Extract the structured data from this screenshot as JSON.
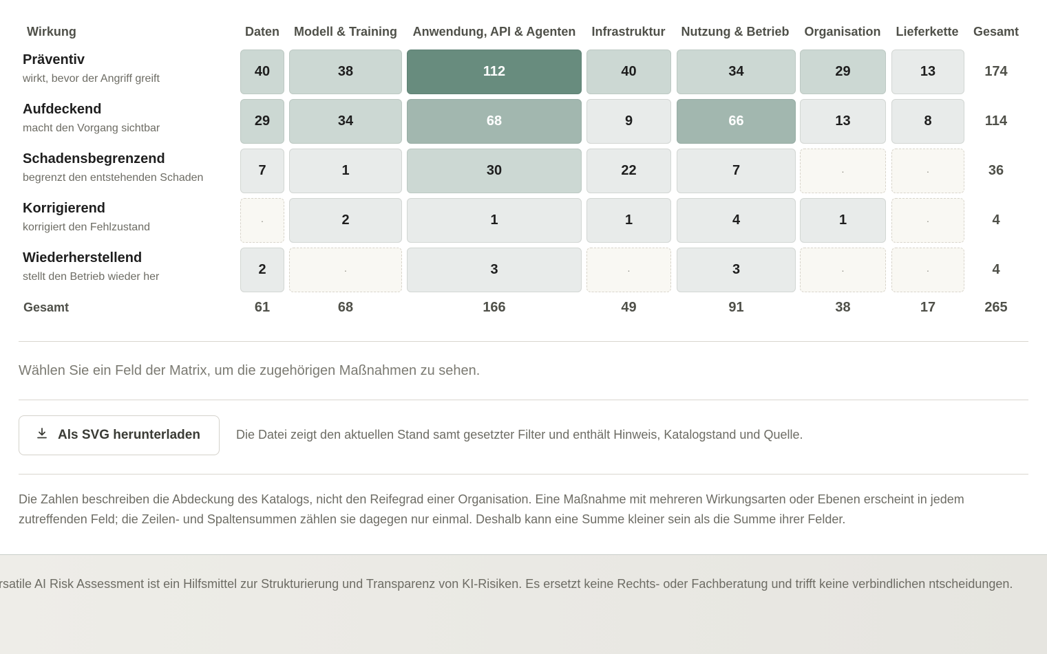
{
  "matrix": {
    "corner_label": "Wirkung",
    "columns": [
      "Daten",
      "Modell & Training",
      "Anwendung, API & Agenten",
      "Infrastruktur",
      "Nutzung & Betrieb",
      "Organisation",
      "Lieferkette",
      "Gesamt"
    ],
    "rows": [
      {
        "title": "Präventiv",
        "subtitle": "wirkt, bevor der Angriff greift",
        "cells": [
          "40",
          "38",
          "112",
          "40",
          "34",
          "29",
          "13"
        ],
        "total": "174"
      },
      {
        "title": "Aufdeckend",
        "subtitle": "macht den Vorgang sichtbar",
        "cells": [
          "29",
          "34",
          "68",
          "9",
          "66",
          "13",
          "8"
        ],
        "total": "114"
      },
      {
        "title": "Schadensbegrenzend",
        "subtitle": "begrenzt den entstehenden Schaden",
        "cells": [
          "7",
          "1",
          "30",
          "22",
          "7",
          "·",
          "·"
        ],
        "total": "36"
      },
      {
        "title": "Korrigierend",
        "subtitle": "korrigiert den Fehlzustand",
        "cells": [
          "·",
          "2",
          "1",
          "1",
          "4",
          "1",
          "·"
        ],
        "total": "4"
      },
      {
        "title": "Wiederherstellend",
        "subtitle": "stellt den Betrieb wieder her",
        "cells": [
          "2",
          "·",
          "3",
          "·",
          "3",
          "·",
          "·"
        ],
        "total": "4"
      }
    ],
    "totals_label": "Gesamt",
    "column_totals": [
      "61",
      "68",
      "166",
      "49",
      "91",
      "38",
      "17"
    ],
    "grand_total": "265",
    "intensity_colors": [
      "#e8ebea",
      "#ccd8d3",
      "#a2b7af",
      "#688c7e"
    ]
  },
  "selection_hint": "Wählen Sie ein Feld der Matrix, um die zugehörigen Maßnahmen zu sehen.",
  "download": {
    "button_label": "Als SVG herunterladen",
    "icon": "download-icon",
    "note": "Die Datei zeigt den aktuellen Stand samt gesetzter Filter und enthält Hinweis, Katalogstand und Quelle."
  },
  "explanation": "Die Zahlen beschreiben die Abdeckung des Katalogs, nicht den Reifegrad einer Organisation. Eine Maßnahme mit mehreren Wirkungsarten oder Ebenen erscheint in jedem zutreffenden Feld; die Zeilen- und Spaltensummen zählen sie dagegen nur einmal. Deshalb kann eine Summe kleiner sein als die Summe ihrer Felder.",
  "footer": {
    "disclaimer": "ersatile AI Risk Assessment ist ein Hilfsmittel zur Strukturierung und Transparenz von KI-Risiken. Es ersetzt keine Rechts- oder Fachberatung und trifft keine verbindlichen ntscheidungen."
  }
}
